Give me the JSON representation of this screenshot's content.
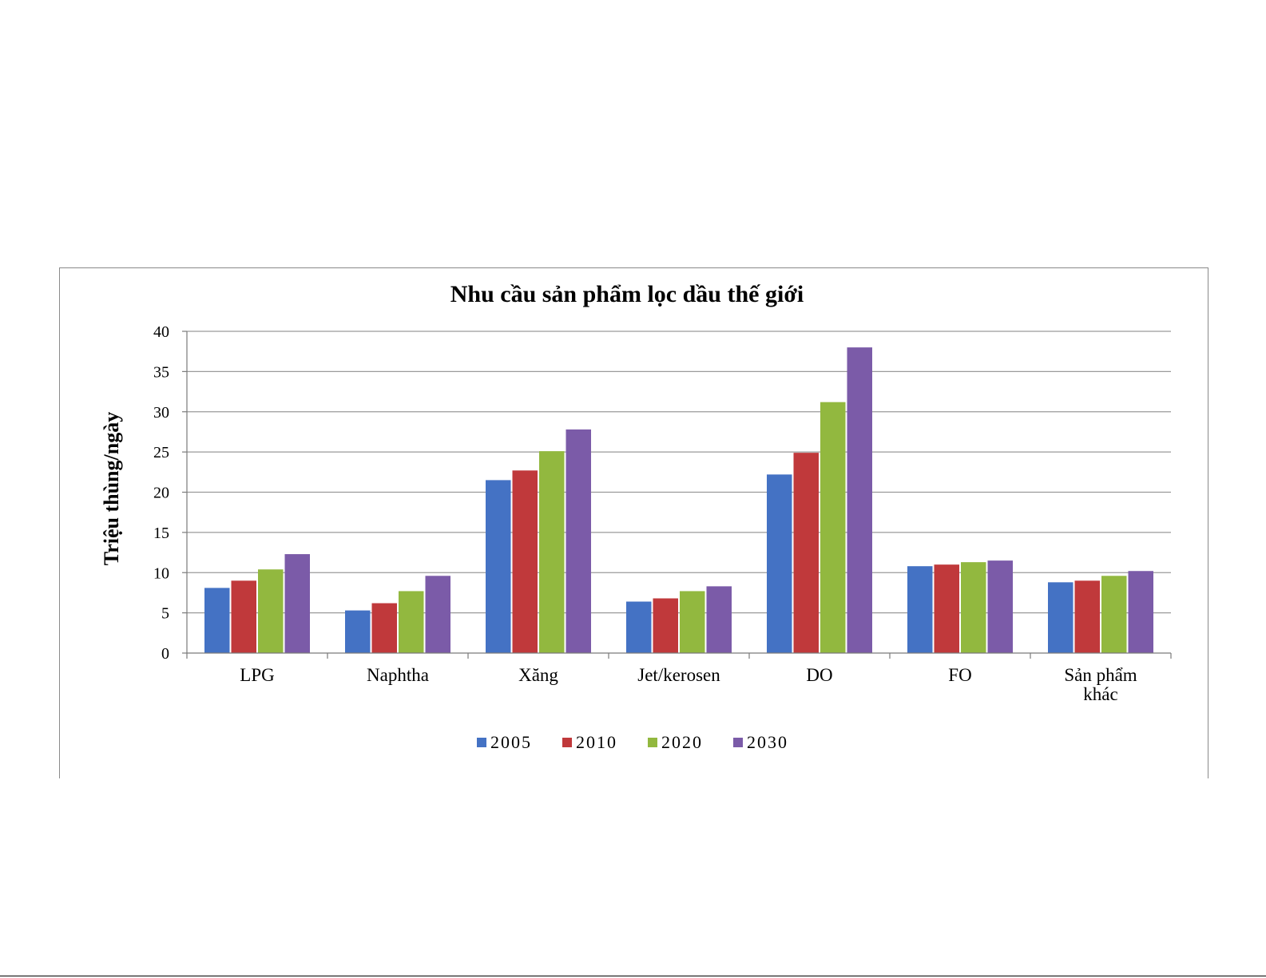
{
  "chart_data": {
    "type": "bar",
    "title": "Nhu cầu sản phẩm lọc dầu thế giới",
    "xlabel": "",
    "ylabel": "Triệu thùng/ngày",
    "ylim": [
      0,
      40
    ],
    "yticks": [
      "0",
      "5",
      "10",
      "15",
      "20",
      "25",
      "30",
      "35",
      "40"
    ],
    "categories": [
      "LPG",
      "Naphtha",
      "Xăng",
      "Jet/kerosen",
      "DO",
      "FO",
      "Sản phẩm khác"
    ],
    "series": [
      {
        "name": "2005",
        "color": "#4472C4",
        "values": [
          8.1,
          5.3,
          21.5,
          6.4,
          22.2,
          10.8,
          8.8
        ]
      },
      {
        "name": "2010",
        "color": "#C0393B",
        "values": [
          9.0,
          6.2,
          22.7,
          6.8,
          24.9,
          11.0,
          9.0
        ]
      },
      {
        "name": "2020",
        "color": "#92B83F",
        "values": [
          10.4,
          7.7,
          25.1,
          7.7,
          31.2,
          11.3,
          9.6
        ]
      },
      {
        "name": "2030",
        "color": "#7B5BA8",
        "values": [
          12.3,
          9.6,
          27.8,
          8.3,
          38.0,
          11.5,
          10.2
        ]
      }
    ],
    "grid": true,
    "legend": "bottom"
  }
}
